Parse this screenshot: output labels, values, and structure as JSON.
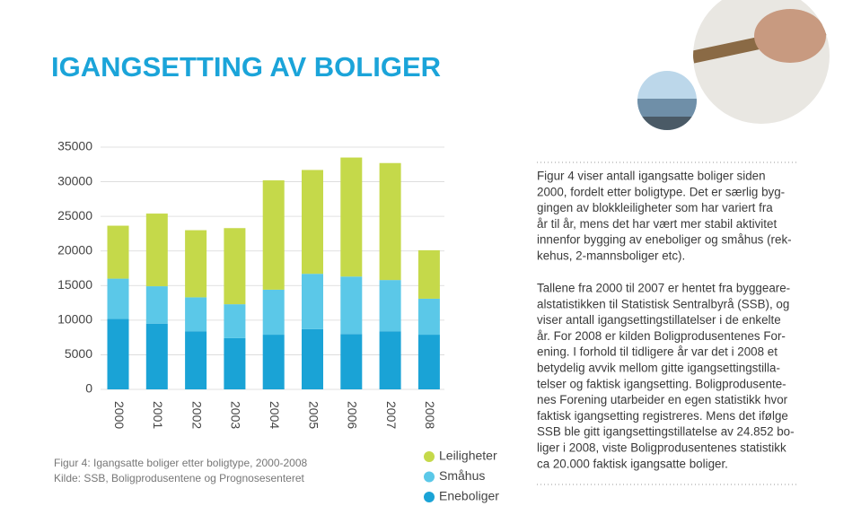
{
  "title": "IGANGSETTING AV BOLIGER",
  "caption": [
    "Figur 4: Igangsatte boliger etter boligtype, 2000-2008",
    "Kilde: SSB, Boligprodusentene og Prognosesenteret"
  ],
  "paragraphs": [
    [
      "Figur 4 viser antall igangsatte boliger siden",
      "2000, fordelt etter boligtype. Det er særlig byg-",
      "gingen av blokkleiligheter som har variert fra",
      "år til år, mens det har vært mer stabil aktivitet",
      "innenfor bygging av eneboliger og småhus (rek-",
      "kehus, 2-mannsboliger etc)."
    ],
    [
      "Tallene fra 2000 til 2007 er hentet fra byggeare-",
      "alstatistikken til Statistisk Sentralbyrå (SSB), og",
      "viser antall igangsettingstillatelser i de enkelte",
      "år. For 2008 er kilden Boligprodusentenes For-",
      "ening. I forhold til tidligere år var det i 2008 et",
      "betydelig avvik mellom gitte igangsettingstilla-",
      "telser og faktisk igangsetting. Boligprodusente-",
      "nes Forening utarbeider en egen statistikk hvor",
      "faktisk igangsetting registreres. Mens det ifølge",
      "SSB ble gitt igangsettingstillatelse av 24.852 bo-",
      "liger i 2008, viste Boligprodusentenes statistikk",
      "ca 20.000 faktisk igangsatte boliger."
    ]
  ],
  "chart_data": {
    "type": "stacked-bar",
    "categories": [
      "2000",
      "2001",
      "2002",
      "2003",
      "2004",
      "2005",
      "2006",
      "2007",
      "2008"
    ],
    "series": [
      {
        "name": "Leiligheter",
        "color": "#c5d94a",
        "values": [
          7650,
          10500,
          9700,
          11000,
          15800,
          15000,
          17200,
          16900,
          7000
        ]
      },
      {
        "name": "Småhus",
        "color": "#5bc8e8",
        "values": [
          5800,
          5400,
          4900,
          4900,
          6500,
          8000,
          8300,
          7400,
          5200
        ]
      },
      {
        "name": "Eneboliger",
        "color": "#1aa3d6",
        "values": [
          10200,
          9500,
          8400,
          7400,
          7900,
          8700,
          8000,
          8400,
          7900
        ]
      }
    ],
    "ylim": [
      0,
      35000
    ],
    "yticks": [
      0,
      5000,
      10000,
      15000,
      20000,
      25000,
      30000,
      35000
    ],
    "grid": true
  }
}
